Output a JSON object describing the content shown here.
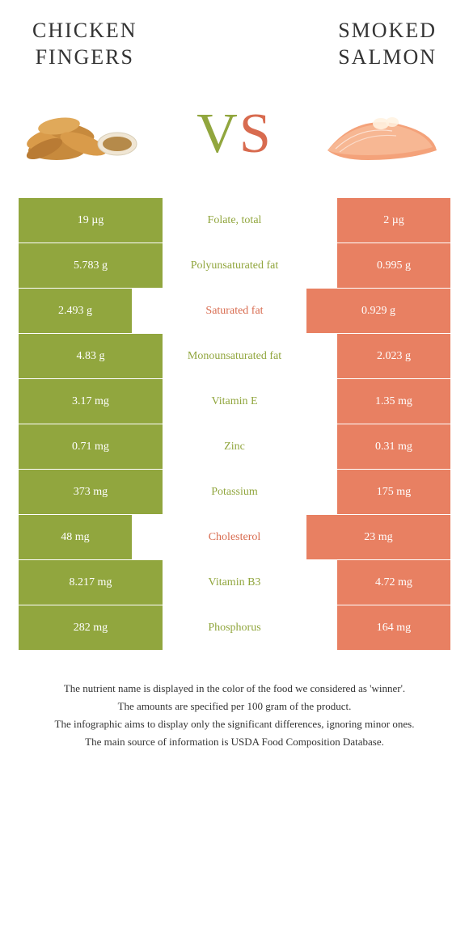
{
  "header": {
    "left_title": "Chicken\nFingers",
    "right_title": "Smoked\nsalmon"
  },
  "vs": {
    "v": "V",
    "s": "S"
  },
  "colors": {
    "green": "#91a63e",
    "salmon": "#e88062",
    "nutrient_green": "#91a63e",
    "nutrient_salmon": "#d86b4f",
    "row_bg_left": "#91a63e",
    "row_bg_right": "#e88062",
    "bg": "#ffffff",
    "text": "#333333"
  },
  "table": {
    "left_width_full": 178,
    "left_width_reduced": 140,
    "center_width": 178,
    "right_width_base": 178,
    "rows": [
      {
        "left": "19 µg",
        "nutrient": "Folate, total",
        "right": "2 µg",
        "winner": "left"
      },
      {
        "left": "5.783 g",
        "nutrient": "Polyunsaturated fat",
        "right": "0.995 g",
        "winner": "left"
      },
      {
        "left": "2.493 g",
        "nutrient": "Saturated fat",
        "right": "0.929 g",
        "winner": "right"
      },
      {
        "left": "4.83 g",
        "nutrient": "Monounsaturated fat",
        "right": "2.023 g",
        "winner": "left"
      },
      {
        "left": "3.17 mg",
        "nutrient": "Vitamin E",
        "right": "1.35 mg",
        "winner": "left"
      },
      {
        "left": "0.71 mg",
        "nutrient": "Zinc",
        "right": "0.31 mg",
        "winner": "left"
      },
      {
        "left": "373 mg",
        "nutrient": "Potassium",
        "right": "175 mg",
        "winner": "left"
      },
      {
        "left": "48 mg",
        "nutrient": "Cholesterol",
        "right": "23 mg",
        "winner": "right"
      },
      {
        "left": "8.217 mg",
        "nutrient": "Vitamin B3",
        "right": "4.72 mg",
        "winner": "left"
      },
      {
        "left": "282 mg",
        "nutrient": "Phosphorus",
        "right": "164 mg",
        "winner": "left"
      }
    ]
  },
  "footer": {
    "line1": "The nutrient name is displayed in the color of the food we considered as 'winner'.",
    "line2": "The amounts are specified per 100 gram of the product.",
    "line3": "The infographic aims to display only the significant differences, ignoring minor ones.",
    "line4": "The main source of information is USDA Food Composition Database."
  }
}
